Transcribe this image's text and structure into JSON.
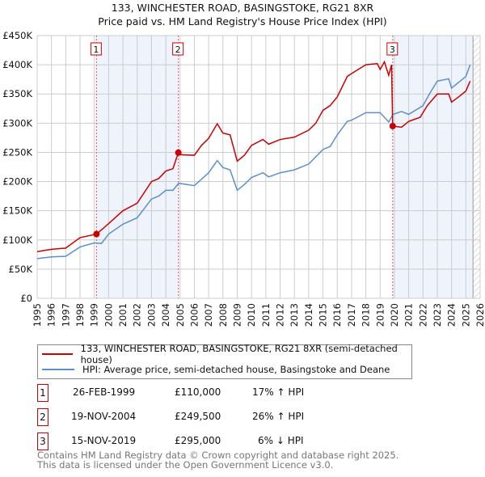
{
  "title": "133, WINCHESTER ROAD, BASINGSTOKE, RG21 8XR",
  "subtitle": "Price paid vs. HM Land Registry's House Price Index (HPI)",
  "colors": {
    "property": "#cc0000",
    "hpi": "#5b8fd0",
    "shade": "#eef3fc"
  },
  "chart_data": {
    "type": "line",
    "title": "133, WINCHESTER ROAD, BASINGSTOKE, RG21 8XR",
    "subtitle": "Price paid vs. HM Land Registry's House Price Index (HPI)",
    "xlim": [
      1995,
      2026
    ],
    "ylim": [
      0,
      450000
    ],
    "yticks": [
      0,
      50000,
      100000,
      150000,
      200000,
      250000,
      300000,
      350000,
      400000,
      450000
    ],
    "ytick_labels": [
      "£0",
      "£50K",
      "£100K",
      "£150K",
      "£200K",
      "£250K",
      "£300K",
      "£350K",
      "£400K",
      "£450K"
    ],
    "xticks": [
      1995,
      1996,
      1997,
      1998,
      1999,
      2000,
      2001,
      2002,
      2003,
      2004,
      2005,
      2006,
      2007,
      2008,
      2009,
      2010,
      2011,
      2012,
      2013,
      2014,
      2015,
      2016,
      2017,
      2018,
      2019,
      2020,
      2021,
      2022,
      2023,
      2024,
      2025,
      2026
    ],
    "grid": true,
    "shaded_ranges": [
      [
        1999.15,
        2004.88
      ],
      [
        2019.88,
        2025.5
      ]
    ],
    "forecast_hatch_from": 2025.5,
    "series": [
      {
        "name": "133, WINCHESTER ROAD, BASINGSTOKE, RG21 8XR (semi-detached house)",
        "x": [
          1995,
          1996,
          1997,
          1998,
          1999.15,
          2000,
          2001,
          2002,
          2003,
          2003.5,
          2004,
          2004.5,
          2004.88,
          2005,
          2006,
          2006.5,
          2007,
          2007.6,
          2008,
          2008.5,
          2009,
          2009.5,
          2010,
          2010.8,
          2011.2,
          2012,
          2013,
          2014,
          2014.5,
          2015,
          2015.5,
          2016,
          2016.7,
          2017,
          2018,
          2018.8,
          2019,
          2019.3,
          2019.6,
          2019.8,
          2019.88,
          2020.5,
          2021,
          2021.8,
          2022.3,
          2023,
          2023.8,
          2024,
          2024.5,
          2025,
          2025.3
        ],
        "y": [
          80000,
          84000,
          86000,
          104000,
          110000,
          128000,
          150000,
          163000,
          200000,
          205000,
          218000,
          222000,
          249500,
          246000,
          245000,
          262000,
          274000,
          299000,
          283000,
          280000,
          235000,
          245000,
          262000,
          272000,
          264000,
          272000,
          276000,
          288000,
          300000,
          322000,
          330000,
          345000,
          380000,
          385000,
          400000,
          402000,
          392000,
          405000,
          382000,
          400000,
          295000,
          293000,
          303000,
          310000,
          330000,
          350000,
          350000,
          336000,
          345000,
          355000,
          372000
        ]
      },
      {
        "name": "HPI: Average price, semi-detached house, Basingstoke and Deane",
        "x": [
          1995,
          1996,
          1997,
          1998,
          1999,
          1999.5,
          2000,
          2001,
          2002,
          2003,
          2003.5,
          2004,
          2004.5,
          2004.9,
          2006,
          2007,
          2007.6,
          2008,
          2008.5,
          2009,
          2009.5,
          2010,
          2010.8,
          2011.2,
          2012,
          2013,
          2014,
          2015,
          2015.5,
          2016,
          2016.7,
          2017,
          2018,
          2019,
          2019.6,
          2019.9,
          2020.5,
          2021,
          2022,
          2022.5,
          2023,
          2023.8,
          2024,
          2024.5,
          2025,
          2025.3
        ],
        "y": [
          68000,
          71000,
          72000,
          88000,
          95000,
          94000,
          110000,
          127000,
          138000,
          170000,
          175000,
          185000,
          185000,
          197000,
          193000,
          215000,
          236000,
          224000,
          220000,
          185000,
          195000,
          207000,
          215000,
          208000,
          215000,
          220000,
          230000,
          255000,
          260000,
          280000,
          303000,
          305000,
          318000,
          318000,
          302000,
          315000,
          320000,
          315000,
          330000,
          352000,
          372000,
          376000,
          360000,
          370000,
          380000,
          400000
        ]
      }
    ],
    "sales": [
      {
        "label": "1",
        "x": 1999.15,
        "y": 110000
      },
      {
        "label": "2",
        "x": 2004.88,
        "y": 249500
      },
      {
        "label": "3",
        "x": 2019.88,
        "y": 295000
      }
    ]
  },
  "legend": {
    "property": "133, WINCHESTER ROAD, BASINGSTOKE, RG21 8XR (semi-detached house)",
    "hpi": "HPI: Average price, semi-detached house, Basingstoke and Deane"
  },
  "table": [
    {
      "num": "1",
      "date": "26-FEB-1999",
      "price": "£110,000",
      "hpi": "17% ↑ HPI"
    },
    {
      "num": "2",
      "date": "19-NOV-2004",
      "price": "£249,500",
      "hpi": "26% ↑ HPI"
    },
    {
      "num": "3",
      "date": "15-NOV-2019",
      "price": "£295,000",
      "hpi": "6% ↓ HPI"
    }
  ],
  "footer": {
    "line1": "Contains HM Land Registry data © Crown copyright and database right 2025.",
    "line2": "This data is licensed under the Open Government Licence v3.0."
  }
}
